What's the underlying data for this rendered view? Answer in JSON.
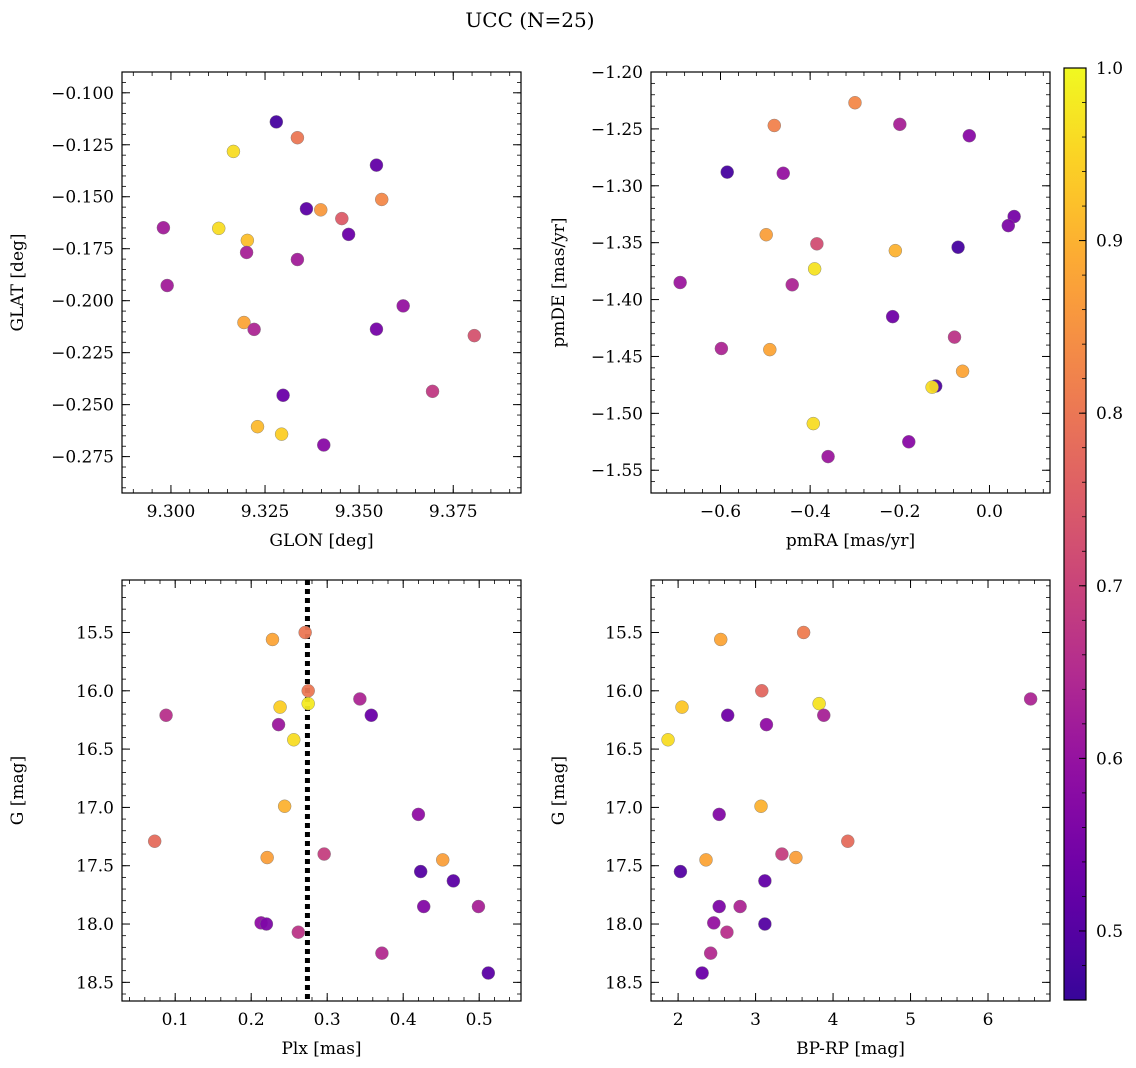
{
  "figure": {
    "title": "UCC (N=25)"
  },
  "colorbar": {
    "min": 0.46,
    "max": 1.0,
    "ticks": [
      0.5,
      0.6,
      0.7,
      0.8,
      0.9,
      1.0
    ],
    "tick_labels": [
      "0.5",
      "0.6",
      "0.7",
      "0.8",
      "0.9",
      "1.0"
    ],
    "colormap": "plasma"
  },
  "chart_data": [
    {
      "type": "scatter",
      "panel": "top-left",
      "title": "",
      "xlabel": "GLON [deg]",
      "ylabel": "GLAT [deg]",
      "xlim": [
        9.287,
        9.393
      ],
      "ylim": [
        -0.2925,
        -0.09
      ],
      "y_inverted": false,
      "xticks": [
        9.3,
        9.325,
        9.35,
        9.375
      ],
      "xtick_labels": [
        "9.300",
        "9.325",
        "9.350",
        "9.375"
      ],
      "yticks": [
        -0.1,
        -0.125,
        -0.15,
        -0.175,
        -0.2,
        -0.225,
        -0.25,
        -0.275
      ],
      "ytick_labels": [
        "−0.100",
        "−0.125",
        "−0.150",
        "−0.175",
        "−0.200",
        "−0.225",
        "−0.250",
        "−0.275"
      ],
      "x": [
        9.328,
        9.3166,
        9.3336,
        9.3546,
        9.336,
        9.3398,
        9.356,
        9.3454,
        9.3472,
        9.298,
        9.3127,
        9.3203,
        9.3201,
        9.3336,
        9.299,
        9.3617,
        9.3194,
        9.3221,
        9.3546,
        9.3806,
        9.3695,
        9.3298,
        9.323,
        9.3294,
        9.3406
      ],
      "y": [
        -0.114,
        -0.1282,
        -0.1216,
        -0.1348,
        -0.1558,
        -0.1563,
        -0.1513,
        -0.1605,
        -0.1681,
        -0.1649,
        -0.1652,
        -0.171,
        -0.1768,
        -0.1802,
        -0.1927,
        -0.2025,
        -0.2105,
        -0.2138,
        -0.2137,
        -0.2168,
        -0.2436,
        -0.2455,
        -0.2606,
        -0.2642,
        -0.2694
      ],
      "color_values": [
        0.48,
        0.96,
        0.8,
        0.52,
        0.51,
        0.86,
        0.83,
        0.75,
        0.53,
        0.62,
        0.96,
        0.92,
        0.63,
        0.62,
        0.62,
        0.6,
        0.88,
        0.64,
        0.55,
        0.73,
        0.68,
        0.53,
        0.91,
        0.94,
        0.58
      ]
    },
    {
      "type": "scatter",
      "panel": "top-right",
      "title": "",
      "xlabel": "pmRA [mas/yr]",
      "ylabel": "pmDE [mas/yr]",
      "xlim": [
        -0.755,
        0.135
      ],
      "ylim": [
        -1.57,
        -1.2
      ],
      "y_inverted": false,
      "xticks": [
        -0.6,
        -0.4,
        -0.2,
        0.0
      ],
      "xtick_labels": [
        "−0.6",
        "−0.4",
        "−0.2",
        "0.0"
      ],
      "yticks": [
        -1.2,
        -1.25,
        -1.3,
        -1.35,
        -1.4,
        -1.45,
        -1.5,
        -1.55
      ],
      "ytick_labels": [
        "−1.20",
        "−1.25",
        "−1.30",
        "−1.35",
        "−1.40",
        "−1.45",
        "−1.50",
        "−1.55"
      ],
      "x": [
        -0.3,
        -0.48,
        -0.2,
        -0.045,
        -0.585,
        -0.46,
        0.055,
        0.042,
        -0.498,
        -0.385,
        -0.21,
        -0.07,
        -0.39,
        -0.69,
        -0.44,
        -0.216,
        -0.598,
        -0.49,
        -0.078,
        -0.06,
        -0.12,
        -0.128,
        -0.393,
        -0.18,
        -0.36
      ],
      "y": [
        -1.227,
        -1.247,
        -1.246,
        -1.256,
        -1.288,
        -1.289,
        -1.327,
        -1.335,
        -1.343,
        -1.351,
        -1.357,
        -1.354,
        -1.373,
        -1.385,
        -1.387,
        -1.415,
        -1.443,
        -1.444,
        -1.433,
        -1.463,
        -1.476,
        -1.477,
        -1.509,
        -1.525,
        -1.538
      ],
      "color_values": [
        0.83,
        0.82,
        0.63,
        0.58,
        0.48,
        0.6,
        0.55,
        0.56,
        0.87,
        0.72,
        0.9,
        0.48,
        0.97,
        0.61,
        0.64,
        0.54,
        0.64,
        0.88,
        0.67,
        0.88,
        0.49,
        0.96,
        0.96,
        0.58,
        0.61
      ]
    },
    {
      "type": "scatter",
      "panel": "bottom-left",
      "title": "",
      "xlabel": "Plx [mas]",
      "ylabel": "G [mag]",
      "xlim": [
        0.03,
        0.555
      ],
      "ylim": [
        18.66,
        15.05
      ],
      "y_inverted": true,
      "xticks": [
        0.1,
        0.2,
        0.3,
        0.4,
        0.5
      ],
      "xtick_labels": [
        "0.1",
        "0.2",
        "0.3",
        "0.4",
        "0.5"
      ],
      "yticks": [
        15.5,
        16.0,
        16.5,
        17.0,
        17.5,
        18.0,
        18.5
      ],
      "ytick_labels": [
        "15.5",
        "16.0",
        "16.5",
        "17.0",
        "17.5",
        "18.0",
        "18.5"
      ],
      "reference_line": {
        "x": 0.274,
        "style": "dotted"
      },
      "x": [
        0.271,
        0.228,
        0.275,
        0.343,
        0.238,
        0.275,
        0.088,
        0.358,
        0.236,
        0.256,
        0.244,
        0.42,
        0.073,
        0.221,
        0.296,
        0.452,
        0.423,
        0.466,
        0.427,
        0.499,
        0.213,
        0.22,
        0.262,
        0.372,
        0.512
      ],
      "y": [
        15.5,
        15.56,
        16.0,
        16.07,
        16.14,
        16.11,
        16.21,
        16.21,
        16.29,
        16.42,
        16.99,
        17.06,
        17.29,
        17.43,
        17.4,
        17.45,
        17.55,
        17.63,
        17.85,
        17.85,
        17.99,
        18.0,
        18.07,
        18.25,
        18.42
      ],
      "color_values": [
        0.8,
        0.88,
        0.8,
        0.64,
        0.94,
        0.98,
        0.66,
        0.53,
        0.61,
        0.96,
        0.9,
        0.59,
        0.78,
        0.87,
        0.69,
        0.87,
        0.5,
        0.51,
        0.57,
        0.63,
        0.59,
        0.56,
        0.67,
        0.65,
        0.51
      ]
    },
    {
      "type": "scatter",
      "panel": "bottom-right",
      "title": "",
      "xlabel": "BP-RP [mag]",
      "ylabel": "G [mag]",
      "xlim": [
        1.65,
        6.8
      ],
      "ylim": [
        18.66,
        15.05
      ],
      "y_inverted": true,
      "xticks": [
        2,
        3,
        4,
        5,
        6
      ],
      "xtick_labels": [
        "2",
        "3",
        "4",
        "5",
        "6"
      ],
      "yticks": [
        15.5,
        16.0,
        16.5,
        17.0,
        17.5,
        18.0,
        18.5
      ],
      "ytick_labels": [
        "15.5",
        "16.0",
        "16.5",
        "17.0",
        "17.5",
        "18.0",
        "18.5"
      ],
      "x": [
        3.62,
        2.55,
        3.08,
        6.55,
        2.05,
        3.82,
        2.64,
        3.88,
        3.14,
        1.87,
        3.07,
        2.53,
        4.19,
        2.36,
        3.34,
        3.52,
        2.03,
        3.12,
        2.53,
        2.8,
        2.46,
        3.12,
        2.63,
        2.42,
        2.31
      ],
      "y": [
        15.5,
        15.56,
        16.0,
        16.07,
        16.14,
        16.11,
        16.21,
        16.21,
        16.29,
        16.42,
        16.99,
        17.06,
        17.29,
        17.45,
        17.4,
        17.43,
        17.55,
        17.63,
        17.85,
        17.85,
        17.99,
        18.0,
        18.07,
        18.25,
        18.42
      ],
      "color_values": [
        0.81,
        0.88,
        0.77,
        0.64,
        0.93,
        0.97,
        0.54,
        0.63,
        0.59,
        0.96,
        0.9,
        0.57,
        0.78,
        0.88,
        0.69,
        0.87,
        0.5,
        0.52,
        0.56,
        0.64,
        0.6,
        0.5,
        0.66,
        0.65,
        0.53
      ]
    }
  ]
}
